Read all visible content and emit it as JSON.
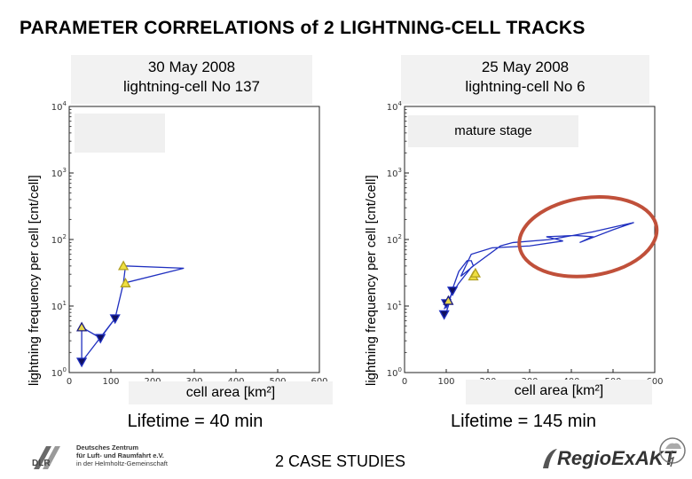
{
  "title": "PARAMETER CORRELATIONS of 2 LIGHTNING-CELL TRACKS",
  "footer": {
    "center": "2 CASE STUDIES",
    "dlr_lines": [
      "Deutsches Zentrum",
      "für Luft- und Raumfahrt e.V.",
      "in der Helmholtz-Gemeinschaft"
    ],
    "dlr_mark": "DLR",
    "regio_logo": "RegioExAKT"
  },
  "panels": [
    {
      "date": "30 May 2008",
      "cell": "lightning-cell No 137",
      "ylabel": "lightning frequency per cell [cnt/cell]",
      "xlabel": "cell area [km²]",
      "lifetime": "Lifetime = 40 min",
      "stage_label": ""
    },
    {
      "date": "25 May 2008",
      "cell": "lightning-cell No 6",
      "ylabel": "lightning frequency per cell [cnt/cell]",
      "xlabel": "cell area [km²]",
      "lifetime": "Lifetime = 145 min",
      "stage_label": "mature stage"
    }
  ],
  "chart_data": [
    {
      "type": "line",
      "xlim": [
        0,
        600
      ],
      "ylim": [
        1,
        10000
      ],
      "yscale": "log",
      "x_ticks": [
        0,
        100,
        200,
        300,
        400,
        500,
        600
      ],
      "y_tick_exponents": [
        0,
        1,
        2,
        3,
        4
      ],
      "line_color": "#2030c0",
      "series": [
        {
          "x": [
            30,
            30,
            75,
            110,
            130,
            135,
            275,
            130,
            110,
            30
          ],
          "y": [
            1.45,
            4.8,
            3.3,
            6.5,
            22,
            40,
            37,
            22,
            6.5,
            1.45
          ]
        }
      ],
      "markers": [
        {
          "x": 30,
          "y": 4.8,
          "kind": "up"
        },
        {
          "x": 30,
          "y": 1.45,
          "kind": "down"
        },
        {
          "x": 75,
          "y": 3.3,
          "kind": "down"
        },
        {
          "x": 110,
          "y": 6.5,
          "kind": "down"
        },
        {
          "x": 130,
          "y": 40,
          "kind": "up-yellow"
        },
        {
          "x": 135,
          "y": 22,
          "kind": "up-yellow"
        }
      ]
    },
    {
      "type": "line",
      "xlim": [
        0,
        600
      ],
      "ylim": [
        1,
        10000
      ],
      "yscale": "log",
      "x_ticks": [
        0,
        100,
        200,
        300,
        400,
        500,
        600
      ],
      "y_tick_exponents": [
        0,
        1,
        2,
        3,
        4
      ],
      "line_color": "#2030c0",
      "series": [
        {
          "x": [
            95,
            105,
            115,
            130,
            150,
            160,
            165,
            135,
            160,
            210,
            300,
            380,
            340,
            410,
            450,
            420,
            500,
            550,
            450,
            350,
            260,
            230,
            160,
            130,
            110,
            95
          ],
          "y": [
            6.5,
            10,
            18,
            33,
            48,
            48,
            40,
            28,
            60,
            75,
            80,
            95,
            110,
            115,
            110,
            90,
            140,
            180,
            130,
            100,
            90,
            80,
            38,
            22,
            14,
            9
          ]
        }
      ],
      "markers": [
        {
          "x": 95,
          "y": 7.5,
          "kind": "down"
        },
        {
          "x": 100,
          "y": 11,
          "kind": "down"
        },
        {
          "x": 105,
          "y": 12,
          "kind": "up"
        },
        {
          "x": 115,
          "y": 17,
          "kind": "down"
        },
        {
          "x": 165,
          "y": 28,
          "kind": "up-yellow"
        },
        {
          "x": 170,
          "y": 31,
          "kind": "up-yellow"
        }
      ],
      "highlight_ellipse": {
        "cx": 440,
        "cy_value": 110,
        "color": "#c0503a"
      }
    }
  ]
}
